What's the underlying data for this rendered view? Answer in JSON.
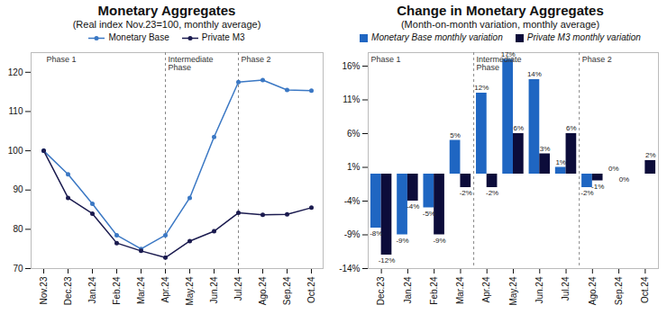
{
  "chart_data": [
    {
      "type": "line",
      "title": "Monetary Aggregates",
      "subtitle": "(Real index Nov.23=100, monthly average)",
      "categories": [
        "Nov.23",
        "Dec.23",
        "Jan.24",
        "Feb.24",
        "Mar.24",
        "Apr.24",
        "May.24",
        "Jun.24",
        "Jul.24",
        "Ago.24",
        "Sep.24",
        "Oct.24"
      ],
      "series": [
        {
          "name": "Monetary Base",
          "color": "#3b78c4",
          "marker": "circle",
          "values": [
            100,
            94,
            86.5,
            78.5,
            75,
            78.5,
            88,
            103.5,
            117.5,
            118,
            115.5,
            115.3
          ]
        },
        {
          "name": "Private M3",
          "color": "#1b1b4f",
          "marker": "circle",
          "values": [
            100,
            88,
            84,
            76.5,
            74.5,
            72.8,
            77,
            79.5,
            84.2,
            83.7,
            83.8,
            85.5
          ]
        }
      ],
      "ylim": [
        70,
        125
      ],
      "yticks": [
        70,
        80,
        90,
        100,
        110,
        120
      ],
      "grid": false,
      "legend": "top",
      "annotations": [
        {
          "text": "Phase 1",
          "x": "Nov.23"
        },
        {
          "text": "Intermediate Phase",
          "x": "Apr.24"
        },
        {
          "text": "Phase 2",
          "x": "Jul.24"
        }
      ]
    },
    {
      "type": "bar",
      "title": "Change in Monetary Aggregates",
      "subtitle": "(Month-on-month variation, monthly average)",
      "categories": [
        "Dec.23",
        "Jan.24",
        "Feb.24",
        "Mar.24",
        "Apr.24",
        "May.24",
        "Jun.24",
        "Jul.24",
        "Ago.24",
        "Sep.24",
        "Oct.24"
      ],
      "series": [
        {
          "name": "Monetary Base monthly variation",
          "color": "#1f66c2",
          "values": [
            -8,
            -9,
            -5,
            5,
            12,
            17,
            14,
            1,
            -2,
            0,
            null
          ],
          "value_labels": [
            "-8%",
            "-9%",
            "-5%",
            "5%",
            "12%",
            "17%",
            "14%",
            "1%",
            "-2%",
            "0%",
            null
          ]
        },
        {
          "name": "Private M3 monthly variation",
          "color": "#0c0c3a",
          "values": [
            -12,
            -4,
            -9,
            -2,
            -2,
            6,
            3,
            6,
            -1,
            0,
            2
          ],
          "value_labels": [
            "-12%",
            "-4%",
            "-9%",
            "-2%",
            "-2%",
            "6%",
            "3%",
            "6%",
            "-1%",
            "0%",
            "2%"
          ]
        }
      ],
      "ylim": [
        -14,
        18
      ],
      "yticks": [
        {
          "value": -14,
          "label": "-14%"
        },
        {
          "value": -9,
          "label": "-9%"
        },
        {
          "value": -4,
          "label": "-4%"
        },
        {
          "value": 1,
          "label": "1%"
        },
        {
          "value": 6,
          "label": "6%"
        },
        {
          "value": 11,
          "label": "11%"
        },
        {
          "value": 16,
          "label": "16%"
        }
      ],
      "grid": false,
      "data_labels": true,
      "legend": "top",
      "annotations": [
        {
          "text": "Phase 1",
          "x": "Dec.23"
        },
        {
          "text": "Intermediate Phase",
          "x": "Apr.24"
        },
        {
          "text": "Phase 2",
          "x": "Ago.24"
        }
      ]
    }
  ]
}
